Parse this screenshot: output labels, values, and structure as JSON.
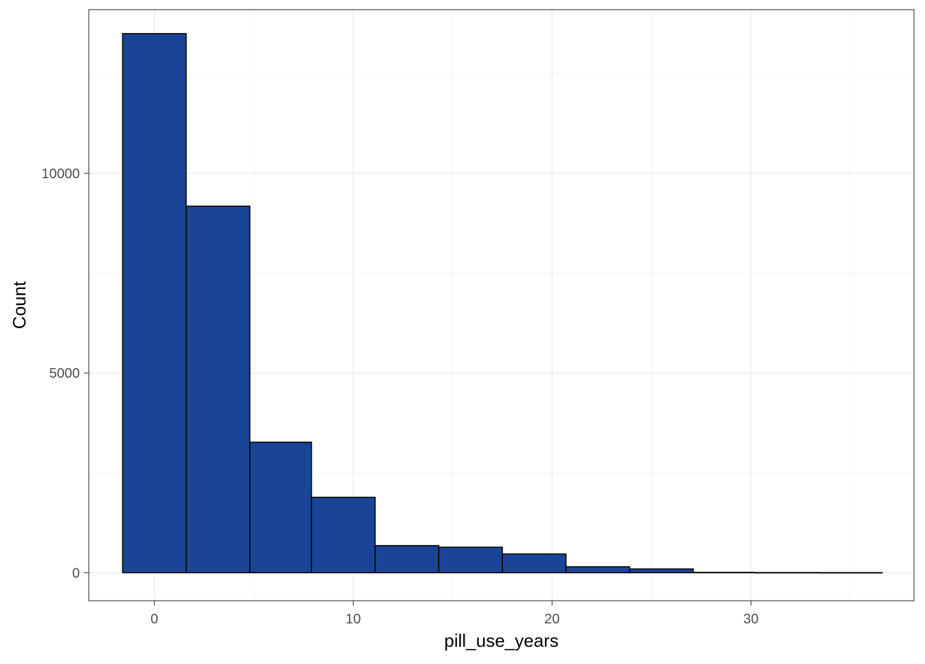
{
  "chart_data": {
    "type": "bar",
    "subtype": "histogram",
    "xlabel": "pill_use_years",
    "ylabel": "Count",
    "xlim": [
      -3.3,
      38.2
    ],
    "ylim": [
      -700,
      14100
    ],
    "x_ticks": [
      0,
      10,
      20,
      30
    ],
    "y_ticks": [
      0,
      5000,
      10000
    ],
    "x_tick_labels": [
      "0",
      "10",
      "20",
      "30"
    ],
    "y_tick_labels": [
      "0",
      "5000",
      "10000"
    ],
    "grid": true,
    "legend": "none",
    "colors": {
      "bar_fill": "#1A4596",
      "bar_stroke": "#000000",
      "grid_major": "#EBEBEB",
      "grid_minor": "#F3F3F3",
      "panel_border": "#333333",
      "tick_label": "#4D4D4D",
      "axis_title": "#000000"
    },
    "bins": [
      {
        "x0": -1.6,
        "x1": 1.6,
        "count": 13500
      },
      {
        "x0": 1.6,
        "x1": 4.8,
        "count": 9180
      },
      {
        "x0": 4.8,
        "x1": 7.9,
        "count": 3270
      },
      {
        "x0": 7.9,
        "x1": 11.1,
        "count": 1890
      },
      {
        "x0": 11.1,
        "x1": 14.3,
        "count": 680
      },
      {
        "x0": 14.3,
        "x1": 17.5,
        "count": 640
      },
      {
        "x0": 17.5,
        "x1": 20.7,
        "count": 470
      },
      {
        "x0": 20.7,
        "x1": 23.9,
        "count": 150
      },
      {
        "x0": 23.9,
        "x1": 27.1,
        "count": 95
      },
      {
        "x0": 27.1,
        "x1": 30.2,
        "count": 10
      },
      {
        "x0": 30.2,
        "x1": 33.4,
        "count": 5
      },
      {
        "x0": 33.4,
        "x1": 36.6,
        "count": 3
      }
    ]
  }
}
